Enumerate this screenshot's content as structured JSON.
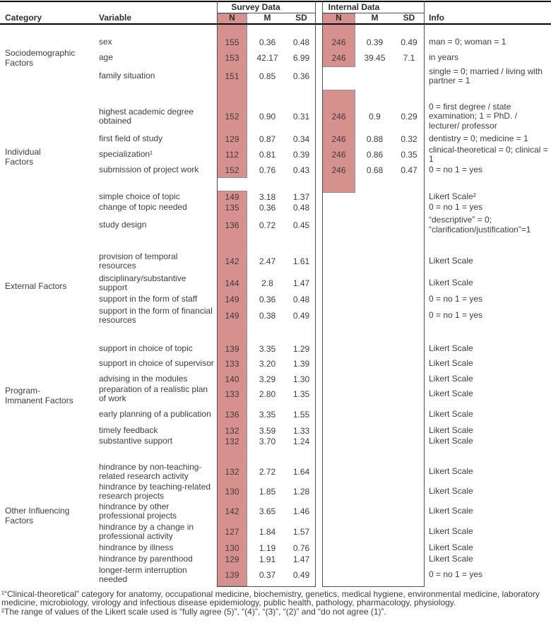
{
  "colors": {
    "highlight": "#d6918e"
  },
  "header": {
    "survey_group": "Survey Data",
    "internal_group": "Internal Data",
    "category": "Category",
    "variable": "Variable",
    "n": "N",
    "m": "M",
    "sd": "SD",
    "info": "Info"
  },
  "categories": [
    {
      "lines": [
        "Sociodemographic",
        "Factors"
      ]
    },
    {
      "lines": [
        "Individual",
        "Factors"
      ]
    },
    {
      "lines": [
        "External Factors"
      ]
    },
    {
      "lines": [
        "Program-",
        "Immanent Factors"
      ]
    },
    {
      "lines": [
        "Other Influencing",
        "Factors"
      ]
    }
  ],
  "rows": [
    {
      "v": "sex",
      "sn": "155",
      "sm": "0.36",
      "ssd": "0.48",
      "xn": "246",
      "xm": "0.39",
      "xsd": "0.49",
      "info": "man = 0; woman = 1"
    },
    {
      "v": "age",
      "sn": "153",
      "sm": "42.17",
      "ssd": "6.99",
      "xn": "246",
      "xm": "39.45",
      "xsd": "7.1",
      "info": "in years"
    },
    {
      "v": "family situation",
      "sn": "151",
      "sm": "0.85",
      "ssd": "0.36",
      "xn": "",
      "xm": "",
      "xsd": "",
      "info": "single = 0; married / living with partner = 1"
    },
    {
      "v": "highest academic degree obtained",
      "sn": "152",
      "sm": "0.90",
      "ssd": "0.31",
      "xn": "246",
      "xm": "0.9",
      "xsd": "0.29",
      "info": "0 = first degree / state examination; 1 = PhD. / lecturer/ professor"
    },
    {
      "v": "first field of study",
      "sn": "129",
      "sm": "0.87",
      "ssd": "0.34",
      "xn": "246",
      "xm": "0.88",
      "xsd": "0.32",
      "info": "dentistry = 0; medicine = 1"
    },
    {
      "v": "specialization¹",
      "sn": "112",
      "sm": "0.81",
      "ssd": "0.39",
      "xn": "246",
      "xm": "0.86",
      "xsd": "0.35",
      "info": "clinical-theoretical = 0; clinical = 1"
    },
    {
      "v": "submission of project work",
      "sn": "152",
      "sm": "0.76",
      "ssd": "0.43",
      "xn": "246",
      "xm": "0.68",
      "xsd": "0.47",
      "info": "0 = no 1 = yes"
    },
    {
      "v": "simple choice of topic",
      "sn": "149",
      "sm": "3.18",
      "ssd": "1.37",
      "xn": "",
      "xm": "",
      "xsd": "",
      "info": "Likert Scale²"
    },
    {
      "v": "change of topic needed",
      "sn": "135",
      "sm": "0.36",
      "ssd": "0.48",
      "xn": "",
      "xm": "",
      "xsd": "",
      "info": "0 = no 1 = yes"
    },
    {
      "v": "study design",
      "sn": "136",
      "sm": "0.72",
      "ssd": "0.45",
      "xn": "",
      "xm": "",
      "xsd": "",
      "info": "“descriptive” = 0; “clarification/justification”=1"
    },
    {
      "v": "provision of temporal resources",
      "sn": "142",
      "sm": "2.47",
      "ssd": "1.61",
      "xn": "",
      "xm": "",
      "xsd": "",
      "info": "Likert Scale"
    },
    {
      "v": "disciplinary/substantive support",
      "sn": "144",
      "sm": "2.8",
      "ssd": "1.47",
      "xn": "",
      "xm": "",
      "xsd": "",
      "info": "Likert Scale"
    },
    {
      "v": "support in the form of staff",
      "sn": "149",
      "sm": "0.36",
      "ssd": "0.48",
      "xn": "",
      "xm": "",
      "xsd": "",
      "info": "0 = no 1 = yes"
    },
    {
      "v": "support in the form of financial resources",
      "sn": "149",
      "sm": "0.38",
      "ssd": "0.49",
      "xn": "",
      "xm": "",
      "xsd": "",
      "info": "0 = no 1 = yes"
    },
    {
      "v": "support in choice of topic",
      "sn": "139",
      "sm": "3.35",
      "ssd": "1.29",
      "xn": "",
      "xm": "",
      "xsd": "",
      "info": "Likert Scale"
    },
    {
      "v": "support in choice of supervisor",
      "sn": "133",
      "sm": "3.20",
      "ssd": "1.39",
      "xn": "",
      "xm": "",
      "xsd": "",
      "info": "Likert Scale"
    },
    {
      "v": "advising in the modules",
      "sn": "140",
      "sm": "3.29",
      "ssd": "1.30",
      "xn": "",
      "xm": "",
      "xsd": "",
      "info": "Likert Scale"
    },
    {
      "v": "preparation of a realistic plan of work",
      "sn": "133",
      "sm": "2.80",
      "ssd": "1.35",
      "xn": "",
      "xm": "",
      "xsd": "",
      "info": "Likert Scale"
    },
    {
      "v": "early planning of a publication",
      "sn": "136",
      "sm": "3.35",
      "ssd": "1.55",
      "xn": "",
      "xm": "",
      "xsd": "",
      "info": "Likert Scale"
    },
    {
      "v": "timely feedback",
      "sn": "132",
      "sm": "3.59",
      "ssd": "1.33",
      "xn": "",
      "xm": "",
      "xsd": "",
      "info": "Likert Scale"
    },
    {
      "v": "substantive support",
      "sn": "132",
      "sm": "3.70",
      "ssd": "1.24",
      "xn": "",
      "xm": "",
      "xsd": "",
      "info": "Likert Scale"
    },
    {
      "v": "hindrance by non-teaching-related research activity",
      "sn": "132",
      "sm": "2.72",
      "ssd": "1.64",
      "xn": "",
      "xm": "",
      "xsd": "",
      "info": "Likert Scale"
    },
    {
      "v": "hindrance by teaching-related research projects",
      "sn": "130",
      "sm": "1.85",
      "ssd": "1.28",
      "xn": "",
      "xm": "",
      "xsd": "",
      "info": "Likert Scale"
    },
    {
      "v": "hindrance by other professional projects",
      "sn": "142",
      "sm": "3.65",
      "ssd": "1.46",
      "xn": "",
      "xm": "",
      "xsd": "",
      "info": "Likert Scale"
    },
    {
      "v": "hindrance by a change in professional activity",
      "sn": "127",
      "sm": "1.84",
      "ssd": "1.57",
      "xn": "",
      "xm": "",
      "xsd": "",
      "info": "Likert Scale"
    },
    {
      "v": "hindrance by illness",
      "sn": "130",
      "sm": "1.19",
      "ssd": "0.76",
      "xn": "",
      "xm": "",
      "xsd": "",
      "info": "Likert Scale"
    },
    {
      "v": "hindrance by parenthood",
      "sn": "129",
      "sm": "1.91",
      "ssd": "1.47",
      "xn": "",
      "xm": "",
      "xsd": "",
      "info": "Likert Scale"
    },
    {
      "v": "longer-term interruption needed",
      "sn": "139",
      "sm": "0.37",
      "ssd": "0.49",
      "xn": "",
      "xm": "",
      "xsd": "",
      "info": "0 = no 1 = yes"
    }
  ],
  "footnotes": [
    "¹“Clinical-theoretical” category for anatomy, occupational medicine, biochemistry, genetics, medical hygiene, environmental medicine, laboratory medicine, microbiology, virology and infectious disease epidemiology, public health, pathology, pharmacology, physiology.",
    "²The range of values of the Likert scale used is “fully agree (5)”, “(4)”, “(3)”, “(2)” and “do not agree (1)”."
  ]
}
